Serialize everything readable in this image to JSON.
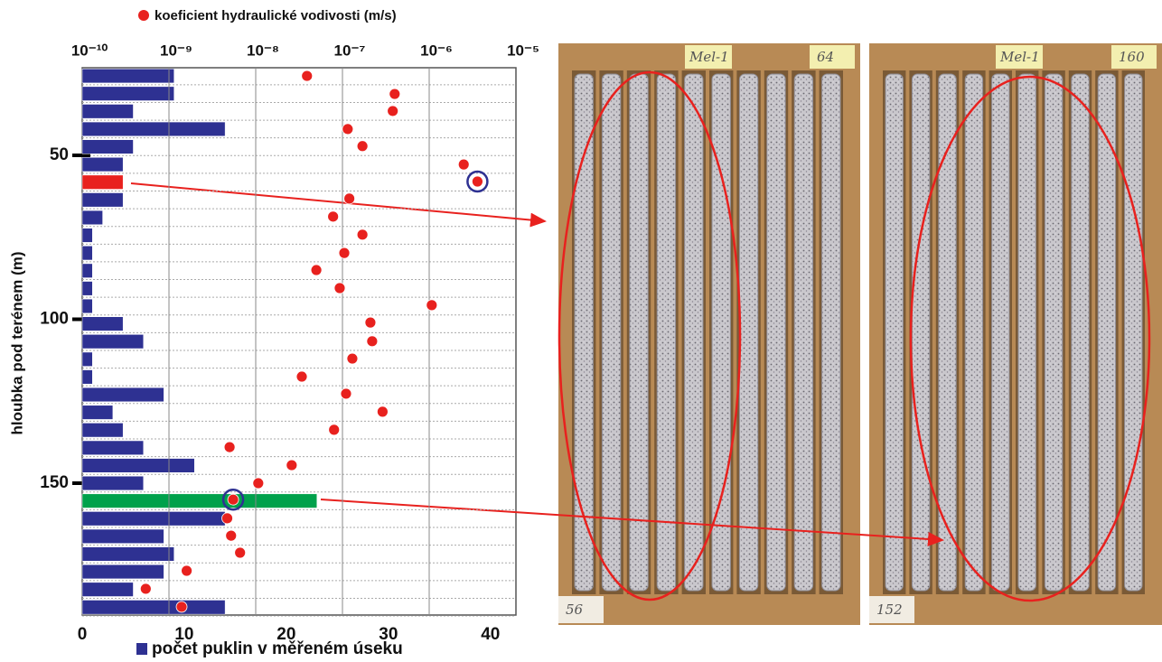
{
  "chart_data": [
    {
      "type": "bar",
      "orientation": "horizontal",
      "legend_label": "počet puklin v měřeném úseku",
      "y_title": "hloubka pod terénem (m)",
      "color": "#2e3192",
      "highlights": [
        {
          "index": 6,
          "color": "#e8211e"
        },
        {
          "index": 24,
          "color": "#00a14b"
        }
      ],
      "y": [
        25.8,
        31.2,
        36.6,
        42.0,
        47.4,
        52.8,
        58.2,
        63.6,
        69.0,
        74.4,
        79.8,
        85.2,
        90.6,
        96.0,
        101.4,
        106.8,
        112.2,
        117.6,
        123.0,
        128.4,
        133.8,
        139.2,
        144.6,
        150.0,
        155.4,
        160.8,
        166.2,
        171.6,
        177.0,
        182.4,
        187.8
      ],
      "values": [
        9,
        9,
        5,
        14,
        5,
        4,
        4,
        4,
        2,
        1,
        1,
        1,
        1,
        1,
        4,
        6,
        1,
        1,
        8,
        3,
        4,
        6,
        11,
        6,
        23,
        14,
        8,
        9,
        8,
        5,
        14
      ],
      "xlim": [
        0,
        42.5
      ],
      "xticks": [
        0,
        10,
        20,
        30,
        40
      ],
      "ylim": [
        23.3,
        190.2
      ],
      "yticks": [
        50,
        100,
        150
      ]
    },
    {
      "type": "scatter",
      "name": "koeficient hydraulické vodivosti (m/s)",
      "color": "#e8211e",
      "x": [
        3.9e-08,
        4e-07,
        3.8e-07,
        1.15e-07,
        1.7e-07,
        2.5e-06,
        3.6e-06,
        1.2e-07,
        7.8e-08,
        1.7e-07,
        1.05e-07,
        5e-08,
        9.3e-08,
        1.07e-06,
        2.1e-07,
        2.2e-07,
        1.3e-07,
        3.4e-08,
        1.1e-07,
        2.9e-07,
        8e-08,
        5e-09,
        2.6e-08,
        1.07e-08,
        5.5e-09,
        4.7e-09,
        5.2e-09,
        6.6e-09,
        1.6e-09,
        5.4e-10,
        1.4e-09
      ],
      "y": [
        25.8,
        31.3,
        36.5,
        42.0,
        47.2,
        52.8,
        58.0,
        63.2,
        68.7,
        74.2,
        79.8,
        85.0,
        90.5,
        95.7,
        101.0,
        106.7,
        112.0,
        117.5,
        122.7,
        128.2,
        133.7,
        139.0,
        144.5,
        150.0,
        155.0,
        160.7,
        166.0,
        171.2,
        176.7,
        182.2,
        187.7
      ],
      "xscale": "log",
      "xlim": [
        1e-10,
        1e-05
      ],
      "xticks": [
        {
          "value": 1e-10,
          "label": "10⁻¹⁰"
        },
        {
          "value": 1e-09,
          "label": "10⁻⁹"
        },
        {
          "value": 1e-08,
          "label": "10⁻⁸"
        },
        {
          "value": 1e-07,
          "label": "10⁻⁷"
        },
        {
          "value": 1e-06,
          "label": "10⁻⁶"
        },
        {
          "value": 1e-05,
          "label": "10⁻⁵"
        }
      ],
      "grid": true,
      "circled": [
        6,
        24
      ],
      "circle_color": "#2e3192",
      "ylim": [
        23.3,
        190.2
      ]
    }
  ],
  "photos": [
    {
      "labels": [
        "Mel-1",
        "64",
        "56"
      ]
    },
    {
      "labels": [
        "Mel-1",
        "160",
        "152"
      ]
    }
  ]
}
